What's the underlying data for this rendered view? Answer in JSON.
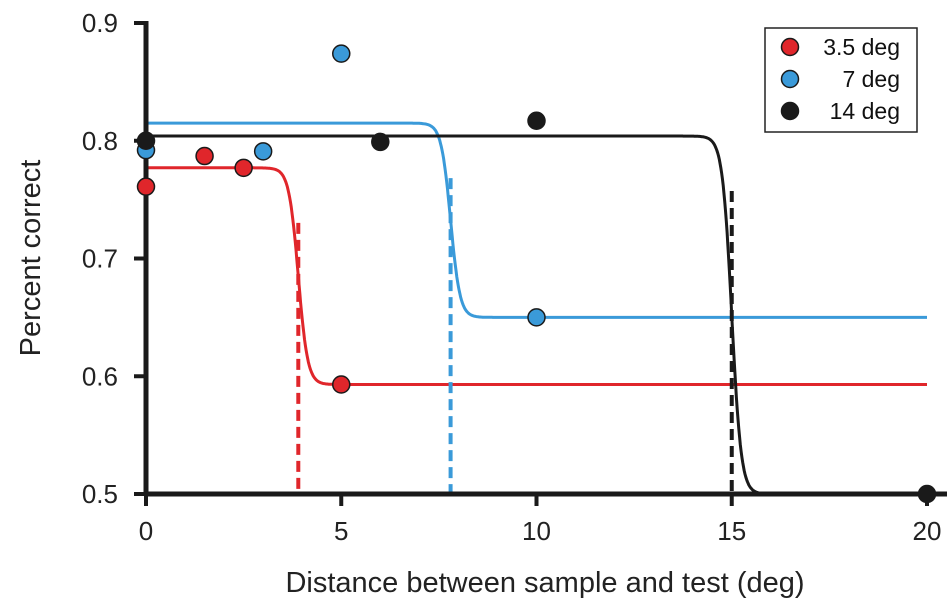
{
  "chart_data": {
    "type": "scatter",
    "xlabel": "Distance between sample and test (deg)",
    "ylabel": "Percent correct",
    "xlim": [
      0,
      20
    ],
    "ylim": [
      0.5,
      0.9
    ],
    "xticks": [
      0,
      5,
      10,
      15,
      20
    ],
    "yticks": [
      0.5,
      0.6,
      0.7,
      0.8,
      0.9
    ],
    "xtick_labels": [
      "0",
      "5",
      "10",
      "15",
      "20"
    ],
    "ytick_labels": [
      "0.5",
      "0.6",
      "0.7",
      "0.8",
      "0.9"
    ],
    "grid": false,
    "legend_position": "top-right",
    "series": [
      {
        "name": "3.5 deg",
        "color": "#e0262b",
        "points": [
          {
            "x": 0,
            "y": 0.761
          },
          {
            "x": 1.5,
            "y": 0.787
          },
          {
            "x": 2.5,
            "y": 0.777
          },
          {
            "x": 5,
            "y": 0.593
          }
        ],
        "fit": {
          "high": 0.777,
          "low": 0.593,
          "threshold": 3.9
        }
      },
      {
        "name": "7 deg",
        "color": "#3a9ad9",
        "points": [
          {
            "x": 0,
            "y": 0.792
          },
          {
            "x": 3,
            "y": 0.791
          },
          {
            "x": 5,
            "y": 0.874
          },
          {
            "x": 10,
            "y": 0.65
          }
        ],
        "fit": {
          "high": 0.815,
          "low": 0.65,
          "threshold": 7.8
        }
      },
      {
        "name": "14 deg",
        "color": "#1a1a1a",
        "points": [
          {
            "x": 0,
            "y": 0.8
          },
          {
            "x": 6,
            "y": 0.799
          },
          {
            "x": 10,
            "y": 0.817
          },
          {
            "x": 20,
            "y": 0.5
          }
        ],
        "fit": {
          "high": 0.804,
          "low": 0.5,
          "threshold": 15.0
        }
      }
    ]
  }
}
